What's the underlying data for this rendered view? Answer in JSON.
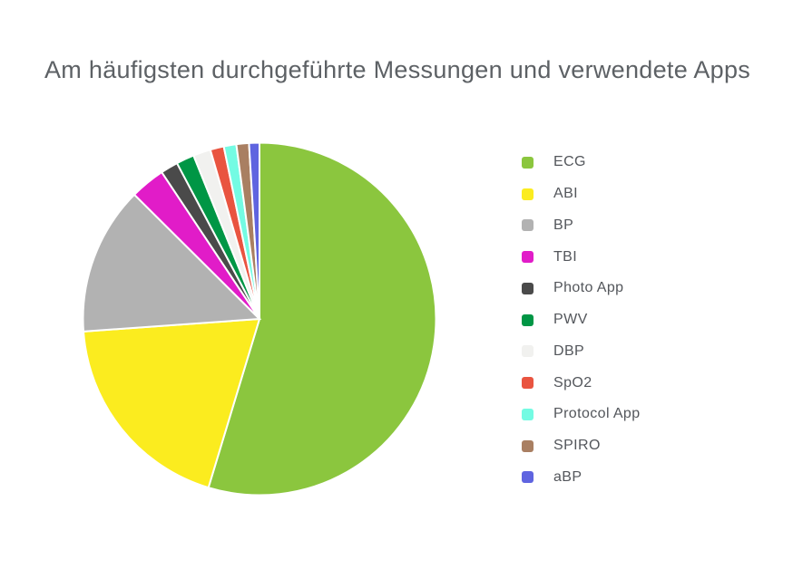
{
  "chart_data": {
    "type": "pie",
    "title": "Am häufigsten durchgeführte Messungen und verwendete Apps",
    "labels": [
      "ECG",
      "ABI",
      "BP",
      "TBI",
      "Photo App",
      "PWV",
      "DBP",
      "SpO2",
      "Protocol App",
      "SPIRO",
      "aBP"
    ],
    "values": [
      54.7,
      19.2,
      13.6,
      3.2,
      1.6,
      1.65,
      1.6,
      1.25,
      1.15,
      1.15,
      0.95
    ],
    "colors": [
      "#8bc63e",
      "#fbec1f",
      "#b2b2b2",
      "#e11cc8",
      "#4a4a4a",
      "#009645",
      "#f1f1ef",
      "#e95440",
      "#74fbe3",
      "#a97f62",
      "#5f64e0"
    ],
    "legend_position": "right",
    "slice_border_color": "#ffffff",
    "direction": "clockwise",
    "start_angle_deg": 0
  }
}
